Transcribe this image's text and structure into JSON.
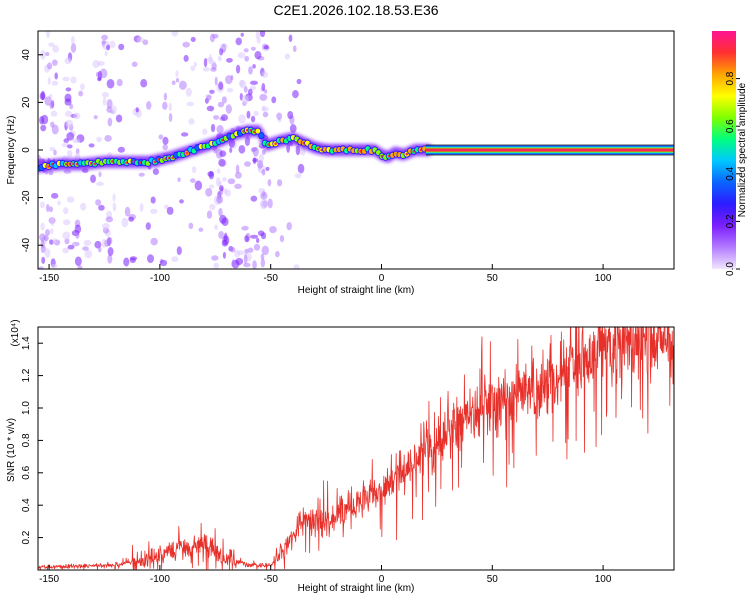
{
  "title": "C2E1.2026.102.18.53.E36",
  "chart_data": [
    {
      "type": "heatmap",
      "xlabel": "Height of straight line (km)",
      "ylabel": "Frequency (Hz)",
      "xlim": [
        -155,
        132
      ],
      "ylim": [
        -50,
        50
      ],
      "xticks": [
        -150,
        -100,
        -50,
        0,
        50,
        100
      ],
      "xtick_labels": [
        "-150",
        "-100",
        "-50",
        "0",
        "50",
        "100"
      ],
      "yticks": [
        -40,
        -20,
        0,
        20,
        40
      ],
      "ytick_labels": [
        "-40",
        "-20",
        "0",
        "20",
        "40"
      ],
      "colorbar": {
        "label": "Normalized spectral amplitude",
        "range": [
          0,
          1
        ],
        "ticks": [
          0,
          0.2,
          0.4,
          0.6,
          0.8
        ],
        "tick_labels": [
          "0.0",
          "0.2",
          "0.4",
          "0.6",
          "0.8"
        ],
        "colors": [
          "#f2e6ff",
          "#b37bff",
          "#7c1fff",
          "#2d1bff",
          "#0a64ff",
          "#00c8ff",
          "#00ff7f",
          "#7fff00",
          "#ffff00",
          "#ffa500",
          "#ff3030",
          "#ff1493"
        ]
      },
      "ridge": {
        "x": [
          -155,
          -145,
          -135,
          -125,
          -115,
          -105,
          -95,
          -85,
          -75,
          -65,
          -60,
          -55,
          -52,
          -45,
          -40,
          -35,
          -30,
          -25,
          -20,
          -10,
          -3,
          0,
          3,
          6,
          10,
          15,
          20,
          132
        ],
        "freq": [
          -7,
          -6,
          -6,
          -5,
          -5,
          -5,
          -3,
          0,
          3,
          7,
          8,
          8,
          2,
          4,
          5,
          3,
          1,
          0,
          0,
          0,
          0,
          -2,
          -3,
          -1,
          -2,
          0,
          0,
          0
        ]
      }
    },
    {
      "type": "line",
      "xlabel": "Height of straight line (km)",
      "ylabel": "SNR (10 * v/v)",
      "y_multiplier_label": "(x10⁴)",
      "xlim": [
        -155,
        132
      ],
      "ylim": [
        0,
        1.5
      ],
      "xticks": [
        -150,
        -100,
        -50,
        0,
        50,
        100
      ],
      "xtick_labels": [
        "-150",
        "-100",
        "-50",
        "0",
        "50",
        "100"
      ],
      "yticks": [
        0.2,
        0.4,
        0.6,
        0.8,
        1.0,
        1.2,
        1.4
      ],
      "ytick_labels": [
        "0.2",
        "0.4",
        "0.6",
        "0.8",
        "1.0",
        "1.2",
        "1.4"
      ],
      "series": [
        {
          "name": "SNR",
          "color": "#e8302a",
          "x": [
            -155,
            -140,
            -120,
            -105,
            -95,
            -85,
            -80,
            -70,
            -60,
            -50,
            -45,
            -40,
            -35,
            -30,
            -20,
            -10,
            0,
            10,
            20,
            30,
            40,
            50,
            60,
            70,
            75,
            80,
            90,
            100,
            110,
            120,
            132
          ],
          "y": [
            0.02,
            0.02,
            0.03,
            0.07,
            0.12,
            0.15,
            0.16,
            0.07,
            0.03,
            0.03,
            0.1,
            0.22,
            0.3,
            0.3,
            0.35,
            0.42,
            0.5,
            0.62,
            0.75,
            0.85,
            0.95,
            1.02,
            1.06,
            1.1,
            1.2,
            1.23,
            1.28,
            1.36,
            1.38,
            1.4,
            1.42
          ]
        }
      ]
    }
  ]
}
